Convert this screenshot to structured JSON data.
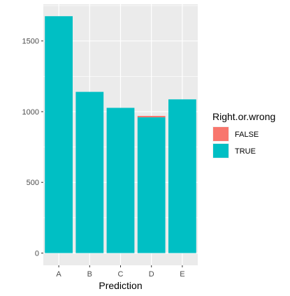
{
  "chart_data": {
    "type": "bar",
    "categories": [
      "A",
      "B",
      "C",
      "D",
      "E"
    ],
    "series": [
      {
        "name": "FALSE",
        "values": [
          0,
          0,
          0,
          10,
          0
        ],
        "color": "#F8766D"
      },
      {
        "name": "TRUE",
        "values": [
          1675,
          1140,
          1027,
          960,
          1087
        ],
        "color": "#00BFC4"
      }
    ],
    "xlabel": "Prediction",
    "ylabel": "",
    "ylim": [
      0,
      1760
    ],
    "yticks": [
      0,
      500,
      1000,
      1500
    ],
    "grid": true,
    "stacked": true,
    "legend": {
      "title": "Right.or.wrong",
      "position": "right",
      "entries": [
        {
          "label": "FALSE",
          "color": "#F8766D"
        },
        {
          "label": "TRUE",
          "color": "#00BFC4"
        }
      ]
    }
  }
}
